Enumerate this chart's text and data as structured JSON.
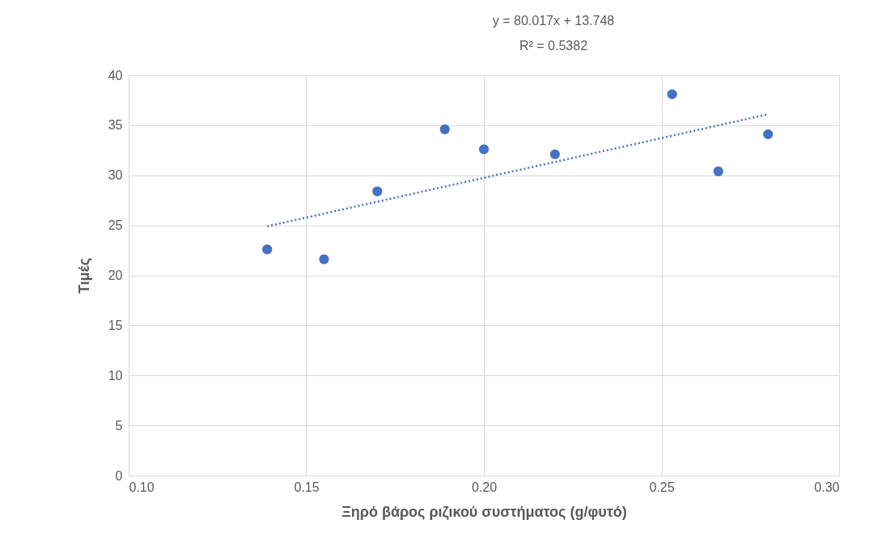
{
  "chart_data": {
    "type": "scatter",
    "xlabel": "Ξηρό βάρος ριζικού συστήματος (g/φυτό)",
    "ylabel": "Τιμές",
    "annotations": [
      "y = 80.017x + 13.748",
      "R² = 0.5382"
    ],
    "series": [
      {
        "color": "#4472c4",
        "marker": "circle",
        "x": [
          0.139,
          0.155,
          0.17,
          0.189,
          0.2,
          0.22,
          0.253,
          0.266,
          0.28
        ],
        "values": [
          22.6,
          21.6,
          28.4,
          34.6,
          32.6,
          32.1,
          38.1,
          30.4,
          34.1
        ]
      },
      {
        "type": "line",
        "color": "#4472c4",
        "line_style": "dotted",
        "x": [
          0.139,
          0.28
        ],
        "values": [
          24.9,
          36.1
        ]
      }
    ],
    "xlim": [
      0.1,
      0.3
    ],
    "xticks": [
      {
        "value": 0.1,
        "label": "0.10"
      },
      {
        "value": 0.15,
        "label": "0.15"
      },
      {
        "value": 0.2,
        "label": "0.20"
      },
      {
        "value": 0.25,
        "label": "0.25"
      },
      {
        "value": 0.3,
        "label": "0.30"
      }
    ],
    "ylim": [
      0,
      40
    ],
    "yticks": [
      0,
      5,
      10,
      15,
      20,
      25,
      30,
      35,
      40
    ],
    "grid": true
  }
}
